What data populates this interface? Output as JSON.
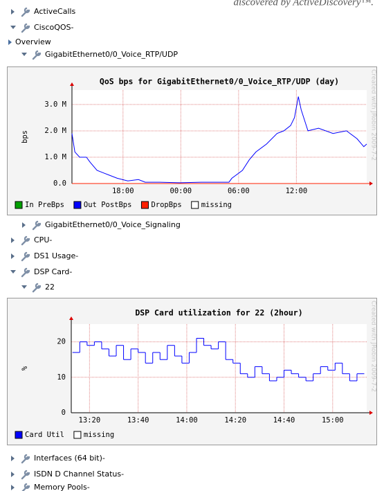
{
  "caption": "discovered by ActiveDiscovery™.",
  "tree": [
    {
      "label": "ActiveCalls",
      "expanded": false
    },
    {
      "label": "CiscoQOS-",
      "expanded": true
    },
    {
      "label": "Overview",
      "expanded": false
    },
    {
      "label": "GigabitEthernet0/0_Voice_RTP/UDP",
      "expanded": true
    },
    {
      "label": "GigabitEthernet0/0_Voice_Signaling",
      "expanded": false
    },
    {
      "label": "CPU-",
      "expanded": false
    },
    {
      "label": "DS1 Usage-",
      "expanded": false
    },
    {
      "label": "DSP Card-",
      "expanded": true
    },
    {
      "label": "22",
      "expanded": true
    },
    {
      "label": "Interfaces (64 bit)-",
      "expanded": false
    },
    {
      "label": "ISDN D Channel Status-",
      "expanded": false
    },
    {
      "label": "Memory Pools-",
      "expanded": false
    }
  ],
  "chart_data": [
    {
      "type": "line",
      "title": "QoS bps for GigabitEthernet0/0_Voice_RTP/UDP (day)",
      "y_label": "bps",
      "side_text": "Created with JRobin 2009-7-2",
      "xlim": [
        0,
        30.6
      ],
      "xticks": [
        {
          "value": 5.3,
          "label": "18:00"
        },
        {
          "value": 11.3,
          "label": "00:00"
        },
        {
          "value": 17.3,
          "label": "06:00"
        },
        {
          "value": 23.3,
          "label": "12:00"
        }
      ],
      "ylim": [
        0,
        3550000
      ],
      "yticks": [
        {
          "value": 0,
          "label": "0.0"
        },
        {
          "value": 1000000,
          "label": "1.0 M"
        },
        {
          "value": 2000000,
          "label": "2.0 M"
        },
        {
          "value": 3000000,
          "label": "3.0 M"
        }
      ],
      "grid": true,
      "series": [
        {
          "name": "In PreBps",
          "color": "#00a000"
        },
        {
          "name": "Out PostBps",
          "color": "#0000ff",
          "x": [
            0,
            0.3,
            0.8,
            1.5,
            1.9,
            2.6,
            3.3,
            4.0,
            4.7,
            5.8,
            6.9,
            7.6,
            9.1,
            11.2,
            13.4,
            16.3,
            16.6,
            17.7,
            18.4,
            19.1,
            20.2,
            21.3,
            22.0,
            22.7,
            23.1,
            23.5,
            23.8,
            24.5,
            25.6,
            27.1,
            28.5,
            29.6,
            30.3,
            30.6
          ],
          "values": [
            1900000,
            1200000,
            1000000,
            1000000,
            800000,
            500000,
            400000,
            300000,
            200000,
            100000,
            150000,
            50000,
            50000,
            30000,
            50000,
            50000,
            200000,
            500000,
            900000,
            1200000,
            1500000,
            1900000,
            2000000,
            2200000,
            2500000,
            3300000,
            2800000,
            2000000,
            2100000,
            1900000,
            2000000,
            1700000,
            1400000,
            1500000
          ]
        },
        {
          "name": "DropBps",
          "color": "#ff2000"
        },
        {
          "name": "missing",
          "color": "#ffffff"
        }
      ]
    },
    {
      "type": "step",
      "title": "DSP Card utilization for 22 (2hour)",
      "y_label": "%",
      "side_text": "Created with JRobin 2009-7-2",
      "xlim": [
        12.5,
        134
      ],
      "xticks": [
        {
          "value": 20,
          "label": "13:20"
        },
        {
          "value": 40,
          "label": "13:40"
        },
        {
          "value": 60,
          "label": "14:00"
        },
        {
          "value": 80,
          "label": "14:20"
        },
        {
          "value": 100,
          "label": "14:40"
        },
        {
          "value": 120,
          "label": "15:00"
        }
      ],
      "ylim": [
        0,
        25
      ],
      "yticks": [
        0,
        10,
        20
      ],
      "grid": true,
      "series": [
        {
          "name": "Card Util",
          "color": "#0000ff",
          "x": [
            13,
            16,
            19,
            22,
            25,
            28,
            31,
            34,
            37,
            40,
            43,
            46,
            49,
            52,
            55,
            58,
            61,
            64,
            67,
            70,
            73,
            76,
            79,
            82,
            85,
            88,
            91,
            94,
            97,
            100,
            103,
            106,
            109,
            112,
            115,
            118,
            121,
            124,
            127,
            130
          ],
          "values": [
            17,
            20,
            19,
            20,
            18,
            16,
            19,
            15,
            18,
            17,
            14,
            17,
            15,
            19,
            16,
            14,
            17,
            21,
            19,
            18,
            20,
            15,
            14,
            11,
            10,
            13,
            11,
            9,
            10,
            12,
            11,
            10,
            9,
            11,
            13,
            12,
            14,
            11,
            9,
            11
          ]
        },
        {
          "name": "missing",
          "color": "#ffffff"
        }
      ]
    }
  ]
}
